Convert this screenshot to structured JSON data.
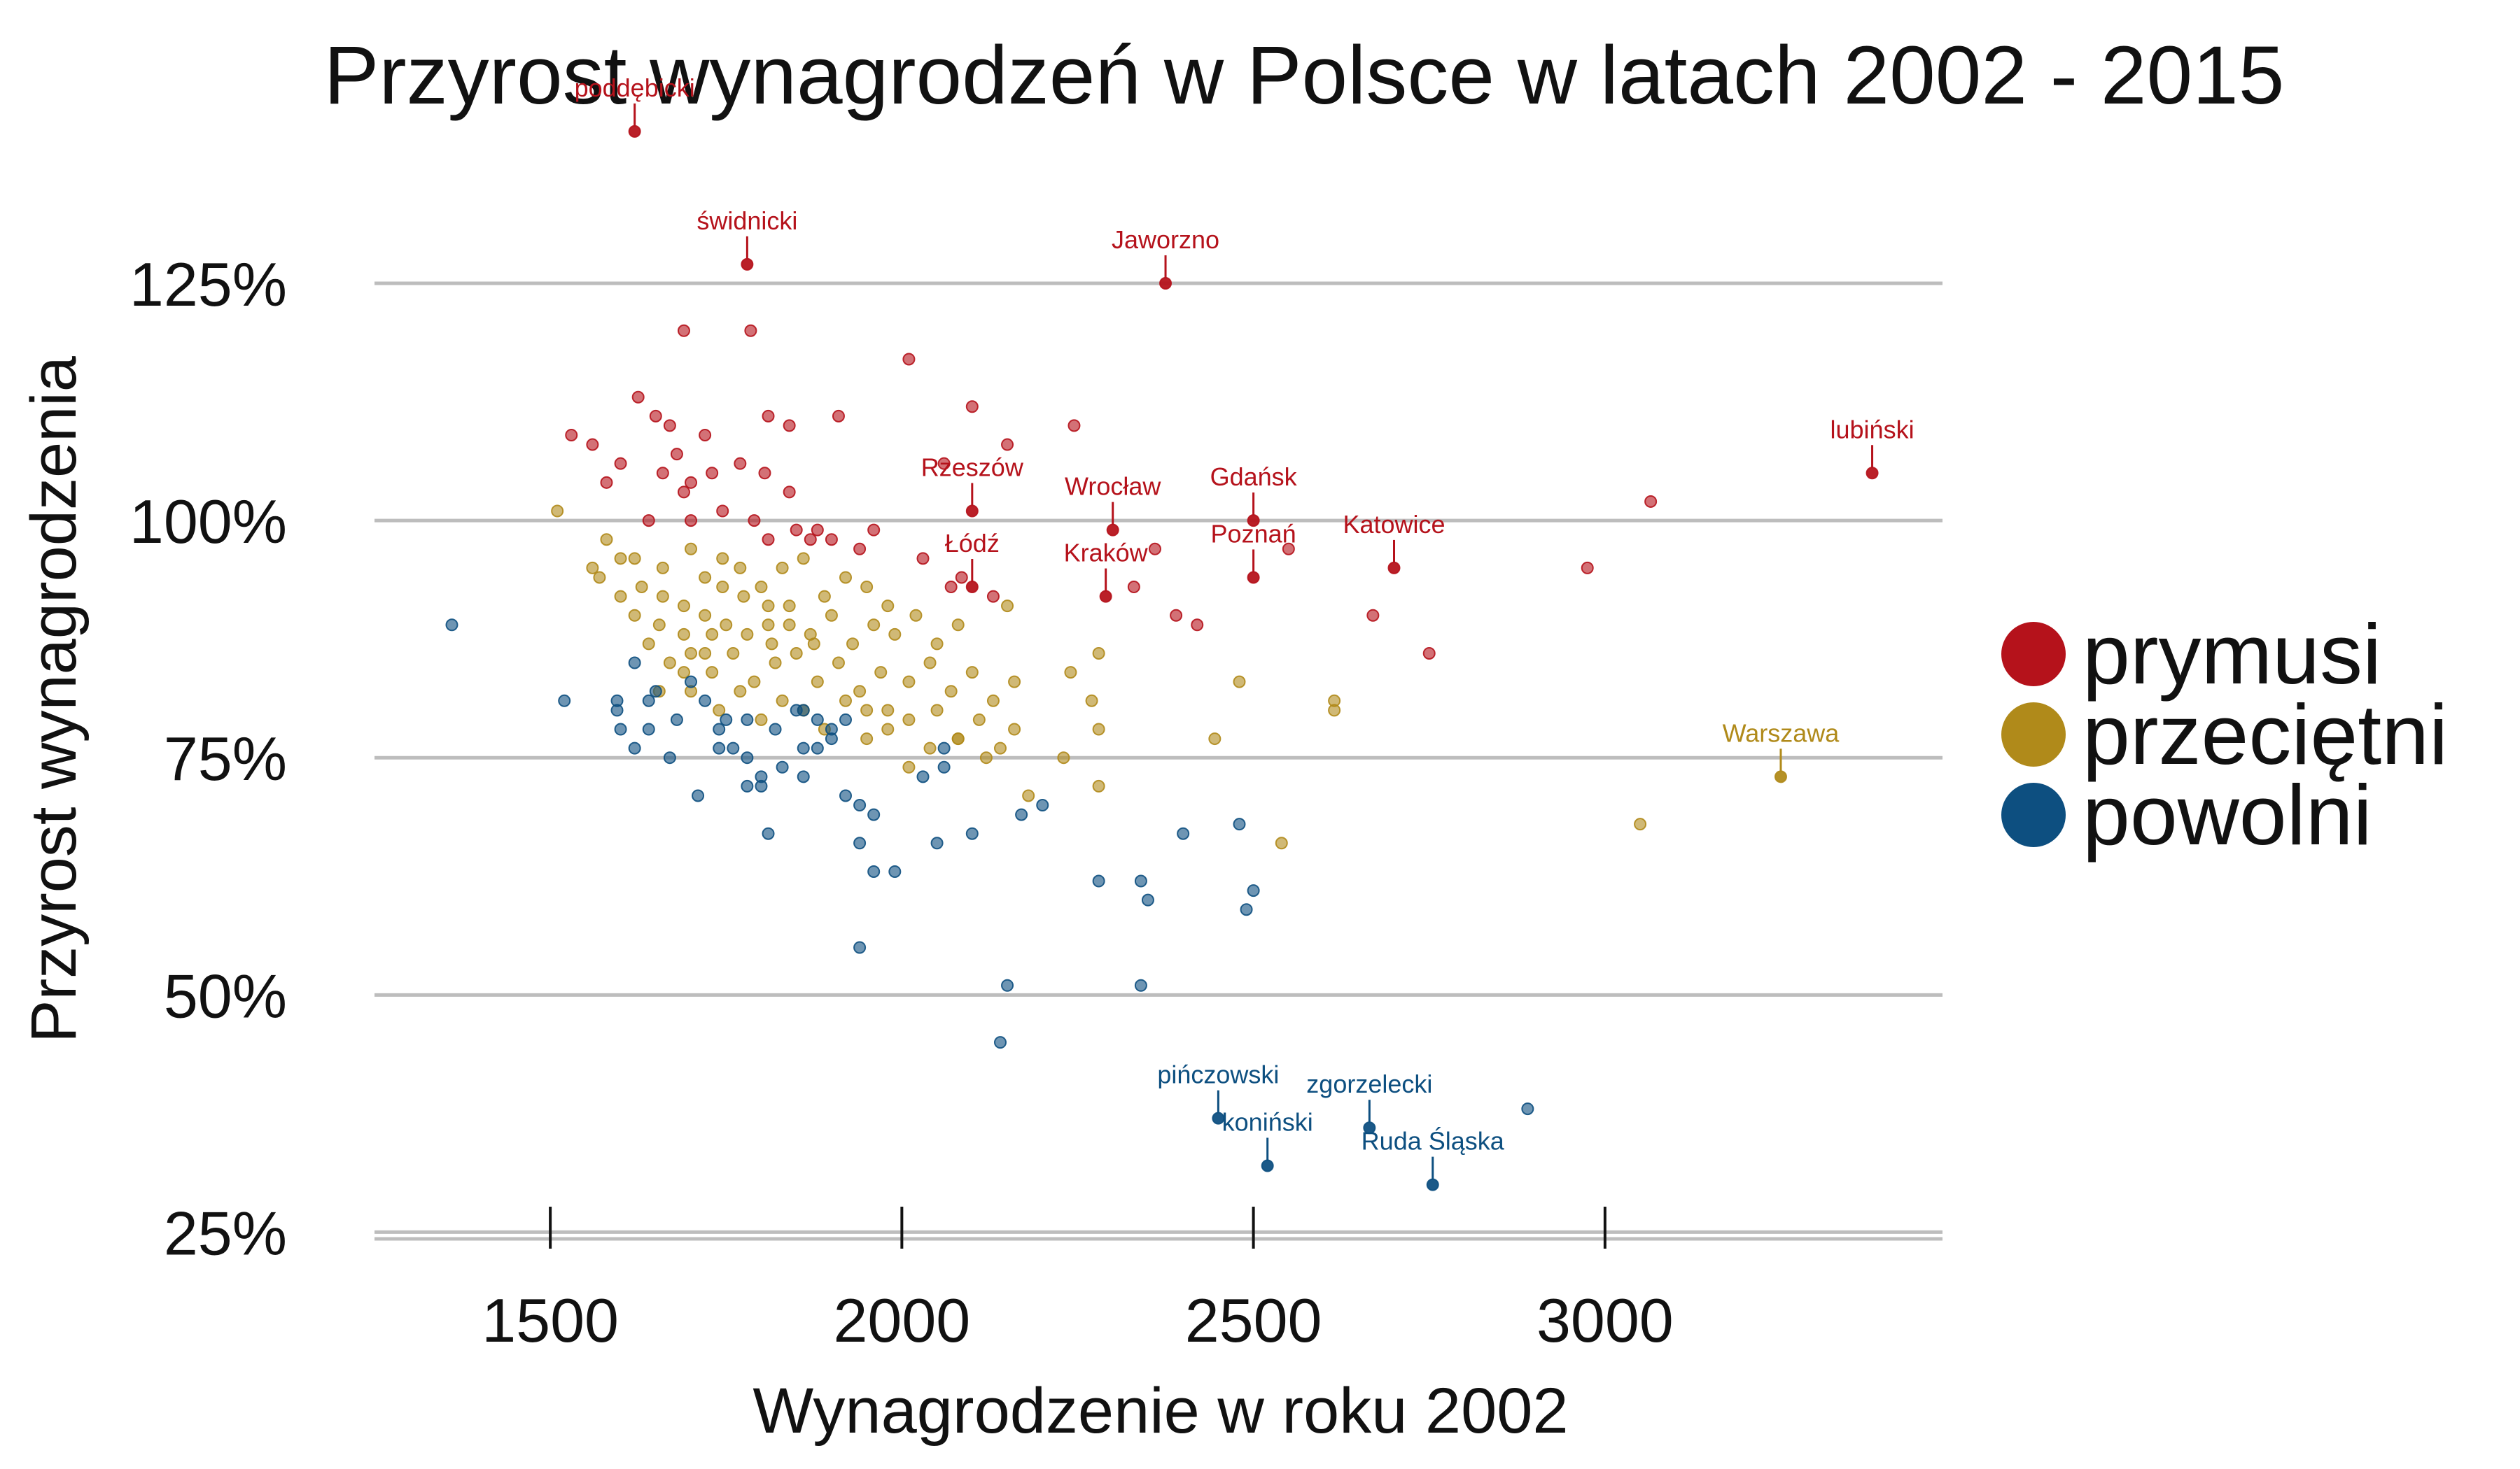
{
  "chart_data": {
    "type": "scatter",
    "title": "Przyrost wynagrodzeń w Polsce w latach 2002 - 2015",
    "xlabel": "Wynagrodzenie w roku 2002",
    "ylabel": "Przyrost wynagrodzenia",
    "xlim": [
      1250,
      3480
    ],
    "ylim": [
      24,
      132
    ],
    "xticks": [
      1500,
      2000,
      2500,
      3000
    ],
    "xtick_labels": [
      "1500",
      "2000",
      "2500",
      "3000"
    ],
    "yticks": [
      25,
      50,
      75,
      100,
      125
    ],
    "ytick_labels": [
      "25%",
      "50%",
      "75%",
      "100%",
      "125%"
    ],
    "grid": "horizontal",
    "legend_position": "right",
    "colors": {
      "prymusi": "#b5121b",
      "przecietni": "#b08a1a",
      "powolni": "#0d4f80"
    },
    "series": [
      {
        "name": "prymusi",
        "color": "#b5121b",
        "points": [
          [
            1620,
            141
          ],
          [
            1780,
            127
          ],
          [
            2375,
            125
          ],
          [
            1690,
            120
          ],
          [
            1785,
            120
          ],
          [
            2010,
            117
          ],
          [
            1625,
            113
          ],
          [
            1650,
            111
          ],
          [
            1670,
            110
          ],
          [
            1720,
            109
          ],
          [
            1810,
            111
          ],
          [
            1840,
            110
          ],
          [
            1910,
            111
          ],
          [
            2100,
            112
          ],
          [
            2245,
            110
          ],
          [
            2150,
            108
          ],
          [
            2060,
            106
          ],
          [
            1680,
            107
          ],
          [
            1600,
            106
          ],
          [
            1560,
            108
          ],
          [
            1530,
            109
          ],
          [
            1700,
            104
          ],
          [
            1730,
            105
          ],
          [
            1770,
            106
          ],
          [
            1805,
            105
          ],
          [
            1840,
            103
          ],
          [
            1660,
            105
          ],
          [
            1690,
            103
          ],
          [
            1580,
            104
          ],
          [
            1640,
            100
          ],
          [
            1700,
            100
          ],
          [
            1745,
            101
          ],
          [
            1790,
            100
          ],
          [
            1850,
            99
          ],
          [
            1870,
            98
          ],
          [
            1900,
            98
          ],
          [
            1960,
            99
          ],
          [
            1940,
            97
          ],
          [
            1880,
            99
          ],
          [
            1810,
            98
          ],
          [
            2100,
            101
          ],
          [
            2300,
            99
          ],
          [
            2500,
            100
          ],
          [
            3380,
            105
          ],
          [
            3065,
            102
          ],
          [
            2550,
            97
          ],
          [
            2700,
            95
          ],
          [
            2360,
            97
          ],
          [
            2085,
            94
          ],
          [
            2100,
            93
          ],
          [
            2130,
            92
          ],
          [
            2070,
            93
          ],
          [
            2330,
            93
          ],
          [
            2290,
            92
          ],
          [
            2500,
            94
          ],
          [
            2975,
            95
          ],
          [
            2750,
            86
          ],
          [
            2670,
            90
          ],
          [
            2420,
            89
          ],
          [
            2390,
            90
          ],
          [
            2030,
            96
          ]
        ]
      },
      {
        "name": "przecietni",
        "color": "#b08a1a",
        "points": [
          [
            1510,
            101
          ],
          [
            1580,
            98
          ],
          [
            1560,
            95
          ],
          [
            1600,
            96
          ],
          [
            1630,
            93
          ],
          [
            1660,
            95
          ],
          [
            1700,
            97
          ],
          [
            1720,
            94
          ],
          [
            1745,
            96
          ],
          [
            1770,
            95
          ],
          [
            1800,
            93
          ],
          [
            1830,
            95
          ],
          [
            1860,
            96
          ],
          [
            1890,
            92
          ],
          [
            1920,
            94
          ],
          [
            1950,
            93
          ],
          [
            1980,
            91
          ],
          [
            1620,
            90
          ],
          [
            1655,
            89
          ],
          [
            1690,
            91
          ],
          [
            1720,
            90
          ],
          [
            1750,
            89
          ],
          [
            1780,
            88
          ],
          [
            1810,
            89
          ],
          [
            1840,
            91
          ],
          [
            1870,
            88
          ],
          [
            1900,
            90
          ],
          [
            1930,
            87
          ],
          [
            1960,
            89
          ],
          [
            1990,
            88
          ],
          [
            2020,
            90
          ],
          [
            2050,
            87
          ],
          [
            2080,
            89
          ],
          [
            2150,
            91
          ],
          [
            1640,
            87
          ],
          [
            1670,
            85
          ],
          [
            1700,
            86
          ],
          [
            1730,
            84
          ],
          [
            1760,
            86
          ],
          [
            1790,
            83
          ],
          [
            1820,
            85
          ],
          [
            1850,
            86
          ],
          [
            1880,
            83
          ],
          [
            1910,
            85
          ],
          [
            1940,
            82
          ],
          [
            1970,
            84
          ],
          [
            2010,
            83
          ],
          [
            2040,
            85
          ],
          [
            2070,
            82
          ],
          [
            2100,
            84
          ],
          [
            2130,
            81
          ],
          [
            2160,
            83
          ],
          [
            1700,
            82
          ],
          [
            1740,
            80
          ],
          [
            1770,
            82
          ],
          [
            1800,
            79
          ],
          [
            1830,
            81
          ],
          [
            1860,
            80
          ],
          [
            1890,
            78
          ],
          [
            1920,
            81
          ],
          [
            1950,
            80
          ],
          [
            1980,
            78
          ],
          [
            2010,
            79
          ],
          [
            2050,
            80
          ],
          [
            2080,
            77
          ],
          [
            2110,
            79
          ],
          [
            2140,
            76
          ],
          [
            2160,
            78
          ],
          [
            2240,
            84
          ],
          [
            2280,
            86
          ],
          [
            2270,
            81
          ],
          [
            2280,
            78
          ],
          [
            2230,
            75
          ],
          [
            2280,
            72
          ],
          [
            2180,
            71
          ],
          [
            2120,
            75
          ],
          [
            2080,
            77
          ],
          [
            2480,
            83
          ],
          [
            2540,
            66
          ],
          [
            2445,
            77
          ],
          [
            2615,
            81
          ],
          [
            2615,
            80
          ],
          [
            3050,
            68
          ],
          [
            3250,
            73
          ],
          [
            1600,
            92
          ],
          [
            1660,
            92
          ],
          [
            1690,
            88
          ],
          [
            1720,
            86
          ],
          [
            1570,
            94
          ],
          [
            1620,
            96
          ],
          [
            1775,
            92
          ],
          [
            1810,
            91
          ],
          [
            1745,
            93
          ],
          [
            1840,
            89
          ],
          [
            1875,
            87
          ],
          [
            1815,
            87
          ],
          [
            1730,
            88
          ],
          [
            1690,
            84
          ],
          [
            1655,
            82
          ],
          [
            1980,
            80
          ],
          [
            2040,
            76
          ],
          [
            2010,
            74
          ],
          [
            1950,
            77
          ]
        ]
      },
      {
        "name": "powolni",
        "color": "#0d4f80",
        "points": [
          [
            1360,
            89
          ],
          [
            1520,
            81
          ],
          [
            1595,
            80
          ],
          [
            1595,
            81
          ],
          [
            1620,
            76
          ],
          [
            1670,
            75
          ],
          [
            1710,
            71
          ],
          [
            1740,
            78
          ],
          [
            1760,
            76
          ],
          [
            1780,
            75
          ],
          [
            1800,
            73
          ],
          [
            1830,
            74
          ],
          [
            1860,
            73
          ],
          [
            1850,
            80
          ],
          [
            1880,
            79
          ],
          [
            1900,
            77
          ],
          [
            1920,
            71
          ],
          [
            1940,
            70
          ],
          [
            1960,
            69
          ],
          [
            1880,
            76
          ],
          [
            1780,
            72
          ],
          [
            1810,
            67
          ],
          [
            1750,
            79
          ],
          [
            1720,
            81
          ],
          [
            1700,
            83
          ],
          [
            1650,
            82
          ],
          [
            1620,
            85
          ],
          [
            1640,
            81
          ],
          [
            1820,
            78
          ],
          [
            1860,
            76
          ],
          [
            2030,
            73
          ],
          [
            2060,
            76
          ],
          [
            2100,
            67
          ],
          [
            2170,
            69
          ],
          [
            2200,
            70
          ],
          [
            2050,
            66
          ],
          [
            1940,
            66
          ],
          [
            1990,
            63
          ],
          [
            1960,
            63
          ],
          [
            1940,
            55
          ],
          [
            2150,
            51
          ],
          [
            2140,
            45
          ],
          [
            2340,
            51
          ],
          [
            2280,
            62
          ],
          [
            2340,
            62
          ],
          [
            2350,
            60
          ],
          [
            2400,
            67
          ],
          [
            2480,
            68
          ],
          [
            2500,
            61
          ],
          [
            2490,
            59
          ],
          [
            2450,
            37
          ],
          [
            2520,
            32
          ],
          [
            2665,
            36
          ],
          [
            2755,
            30
          ],
          [
            2890,
            38
          ],
          [
            1600,
            78
          ],
          [
            1640,
            78
          ],
          [
            1680,
            79
          ],
          [
            1740,
            76
          ],
          [
            1780,
            79
          ],
          [
            1800,
            72
          ],
          [
            1860,
            80
          ],
          [
            1900,
            78
          ],
          [
            1920,
            79
          ],
          [
            2060,
            74
          ]
        ]
      }
    ],
    "annotations": [
      {
        "label": "poddębicki",
        "x": 1620,
        "y": 141,
        "series": "prymusi"
      },
      {
        "label": "świdnicki",
        "x": 1780,
        "y": 127,
        "series": "prymusi"
      },
      {
        "label": "Jaworzno",
        "x": 2375,
        "y": 125,
        "series": "prymusi"
      },
      {
        "label": "lubiński",
        "x": 3380,
        "y": 105,
        "series": "prymusi"
      },
      {
        "label": "Rzeszów",
        "x": 2100,
        "y": 101,
        "series": "prymusi"
      },
      {
        "label": "Wrocław",
        "x": 2300,
        "y": 99,
        "series": "prymusi"
      },
      {
        "label": "Gdańsk",
        "x": 2500,
        "y": 100,
        "series": "prymusi"
      },
      {
        "label": "Łódź",
        "x": 2100,
        "y": 93,
        "series": "prymusi"
      },
      {
        "label": "Kraków",
        "x": 2290,
        "y": 92,
        "series": "prymusi"
      },
      {
        "label": "Poznań",
        "x": 2500,
        "y": 94,
        "series": "prymusi"
      },
      {
        "label": "Katowice",
        "x": 2700,
        "y": 95,
        "series": "prymusi"
      },
      {
        "label": "Warszawa",
        "x": 3250,
        "y": 73,
        "series": "przecietni"
      },
      {
        "label": "pińczowski",
        "x": 2450,
        "y": 37,
        "series": "powolni"
      },
      {
        "label": "zgorzelecki",
        "x": 2665,
        "y": 36,
        "series": "powolni"
      },
      {
        "label": "koniński",
        "x": 2520,
        "y": 32,
        "series": "powolni"
      },
      {
        "label": "Ruda Śląska",
        "x": 2755,
        "y": 30,
        "series": "powolni"
      }
    ],
    "legend": [
      {
        "label": "prymusi",
        "color": "#b5121b"
      },
      {
        "label": "przeciętni",
        "color": "#b08a1a"
      },
      {
        "label": "powolni",
        "color": "#0d4f80"
      }
    ]
  }
}
